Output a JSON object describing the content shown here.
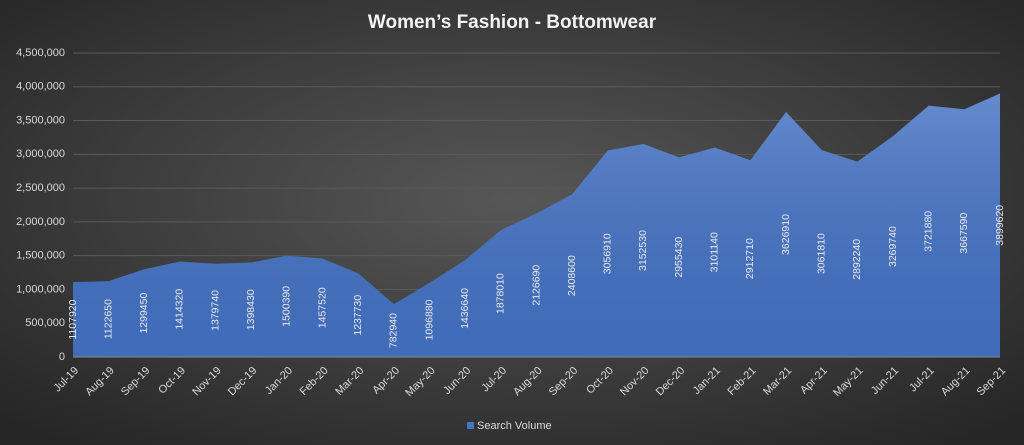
{
  "chart_data": {
    "type": "area",
    "title": "Women’s  Fashion - Bottomwear",
    "categories": [
      "Jul-19",
      "Aug-19",
      "Sep-19",
      "Oct-19",
      "Nov-19",
      "Dec-19",
      "Jan-20",
      "Feb-20",
      "Mar-20",
      "Apr-20",
      "May-20",
      "Jun-20",
      "Jul-20",
      "Aug-20",
      "Sep-20",
      "Oct-20",
      "Nov-20",
      "Dec-20",
      "Jan-21",
      "Feb-21",
      "Mar-21",
      "Apr-21",
      "May-21",
      "Jun-21",
      "Jul-21",
      "Aug-21",
      "Sep-21"
    ],
    "series": [
      {
        "name": "Search Volume",
        "color": "#4472c4",
        "values": [
          1107920,
          1122650,
          1299450,
          1414320,
          1379740,
          1398430,
          1500390,
          1457520,
          1237730,
          782940,
          1096880,
          1436640,
          1878010,
          2126690,
          2408600,
          3056910,
          3152530,
          2955430,
          3101140,
          2912710,
          3626910,
          3061810,
          2892240,
          3269740,
          3721880,
          3667590,
          3899620
        ]
      }
    ],
    "ylim": [
      0,
      4500000
    ],
    "yticks": [
      0,
      {
        "value": 500000,
        "label": "500,000"
      },
      {
        "value": 1000000,
        "label": "1,000,000"
      },
      {
        "value": 1500000,
        "label": "1,500,000"
      },
      {
        "value": 2000000,
        "label": "2,000,000"
      },
      {
        "value": 2500000,
        "label": "2,500,000"
      },
      {
        "value": 3000000,
        "label": "3,000,000"
      },
      {
        "value": 3500000,
        "label": "3,500,000"
      },
      {
        "value": 4000000,
        "label": "4,000,000"
      },
      {
        "value": 4500000,
        "label": "4,500,000"
      }
    ],
    "grid": true,
    "legend": "bottom"
  }
}
